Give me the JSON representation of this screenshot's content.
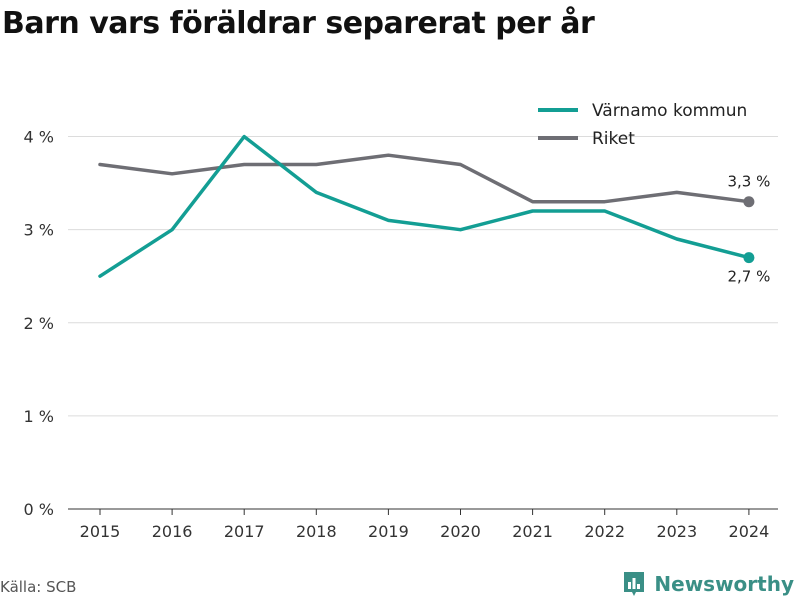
{
  "chart_data": {
    "type": "line",
    "title": "Barn vars föräldrar separerat per år",
    "xlabel": "",
    "ylabel": "",
    "x": [
      "2015",
      "2016",
      "2017",
      "2018",
      "2019",
      "2020",
      "2021",
      "2022",
      "2023",
      "2024"
    ],
    "ylim": [
      0,
      4.5
    ],
    "y_ticks": [
      0,
      1,
      2,
      3,
      4
    ],
    "y_tick_labels": [
      "0 %",
      "1 %",
      "2 %",
      "3 %",
      "4 %"
    ],
    "grid": true,
    "legend_position": "top-right",
    "series": [
      {
        "name": "Värnamo kommun",
        "color": "#139e94",
        "values": [
          2.5,
          3.0,
          4.0,
          3.4,
          3.1,
          3.0,
          3.2,
          3.2,
          2.9,
          2.7
        ],
        "end_label": "2,7 %"
      },
      {
        "name": "Riket",
        "color": "#6e6e74",
        "values": [
          3.7,
          3.6,
          3.7,
          3.7,
          3.8,
          3.7,
          3.3,
          3.3,
          3.4,
          3.3
        ],
        "end_label": "3,3 %"
      }
    ]
  },
  "footer": {
    "source": "Källa: SCB",
    "brand": "Newsworthy",
    "brand_color": "#3a8f86",
    "brand_icon": "bar-chart-logo-icon"
  }
}
